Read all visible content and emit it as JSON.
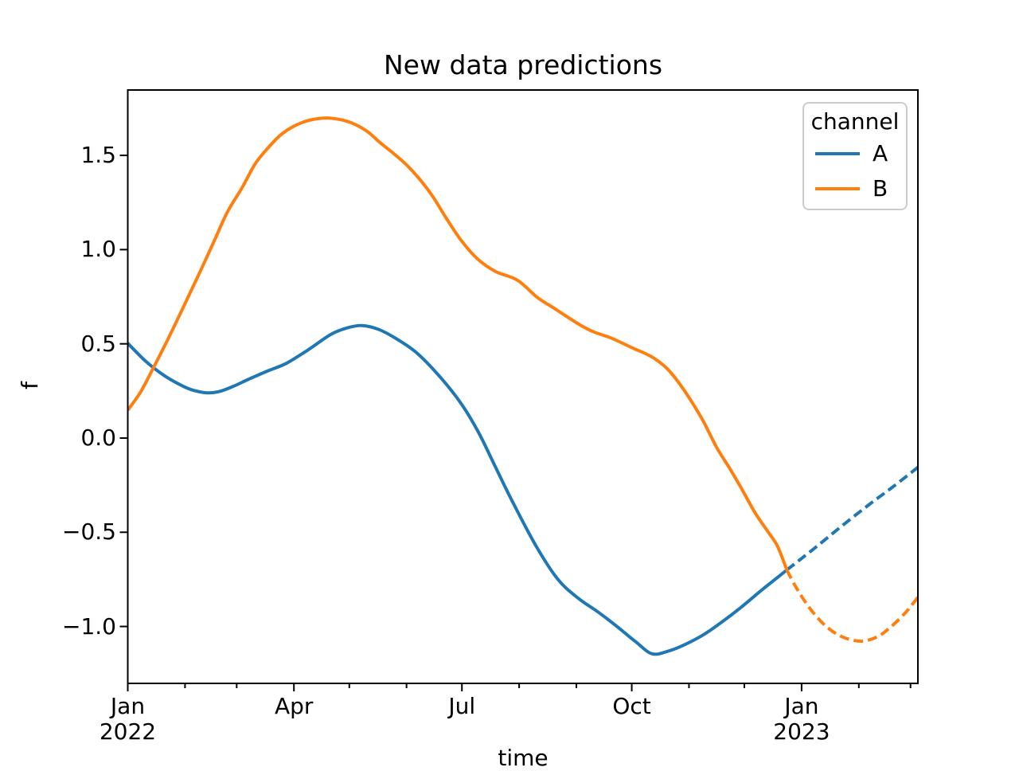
{
  "title": "New data predictions",
  "axes": {
    "xlabel": "time",
    "ylabel": "f"
  },
  "chart_data": {
    "type": "line",
    "title": "New data predictions",
    "xlabel": "time",
    "ylabel": "f",
    "x_start_date": "2022-01-01",
    "x_unit": "days since 2022-01-01",
    "xlim": [
      0,
      428
    ],
    "ylim": [
      -1.302,
      1.847
    ],
    "grid": false,
    "x_major_ticks": [
      {
        "day": 0,
        "label": "Jan",
        "sublabel": "2022"
      },
      {
        "day": 90,
        "label": "Apr",
        "sublabel": ""
      },
      {
        "day": 181,
        "label": "Jul",
        "sublabel": ""
      },
      {
        "day": 273,
        "label": "Oct",
        "sublabel": ""
      },
      {
        "day": 365,
        "label": "Jan",
        "sublabel": "2023"
      }
    ],
    "x_minor_tick_days": [
      31,
      59,
      120,
      151,
      212,
      243,
      304,
      334,
      396,
      424
    ],
    "y_ticks": [
      {
        "value": 1.5,
        "label": "1.5"
      },
      {
        "value": 1.0,
        "label": "1.0"
      },
      {
        "value": 0.5,
        "label": "0.5"
      },
      {
        "value": 0.0,
        "label": "0.0"
      },
      {
        "value": -0.5,
        "label": "−0.5"
      },
      {
        "value": -1.0,
        "label": "−1.0"
      }
    ],
    "legend": {
      "title": "channel",
      "position": "upper right"
    },
    "line_styles": {
      "observed": "solid",
      "predicted": "dashed"
    },
    "series": [
      {
        "name": "A",
        "color": "#1f77b4",
        "observed": [
          [
            0,
            0.503
          ],
          [
            10,
            0.405
          ],
          [
            20,
            0.33
          ],
          [
            30,
            0.275
          ],
          [
            36,
            0.252
          ],
          [
            43,
            0.24
          ],
          [
            50,
            0.248
          ],
          [
            58,
            0.278
          ],
          [
            65,
            0.31
          ],
          [
            76,
            0.357
          ],
          [
            86,
            0.397
          ],
          [
            98,
            0.47
          ],
          [
            110,
            0.55
          ],
          [
            119,
            0.585
          ],
          [
            127,
            0.597
          ],
          [
            136,
            0.576
          ],
          [
            146,
            0.524
          ],
          [
            157,
            0.448
          ],
          [
            170,
            0.315
          ],
          [
            181,
            0.177
          ],
          [
            190,
            0.03
          ],
          [
            199,
            -0.15
          ],
          [
            208,
            -0.33
          ],
          [
            221,
            -0.57
          ],
          [
            233,
            -0.75
          ],
          [
            244,
            -0.85
          ],
          [
            255,
            -0.925
          ],
          [
            265,
            -1.0
          ],
          [
            275,
            -1.08
          ],
          [
            284,
            -1.145
          ],
          [
            293,
            -1.13
          ],
          [
            302,
            -1.095
          ],
          [
            312,
            -1.043
          ],
          [
            322,
            -0.975
          ],
          [
            332,
            -0.9
          ],
          [
            343,
            -0.81
          ],
          [
            350,
            -0.755
          ],
          [
            357,
            -0.7
          ]
        ],
        "predicted": [
          [
            357,
            -0.7
          ],
          [
            372,
            -0.585
          ],
          [
            387,
            -0.465
          ],
          [
            402,
            -0.35
          ],
          [
            415,
            -0.255
          ],
          [
            428,
            -0.155
          ]
        ]
      },
      {
        "name": "B",
        "color": "#ff7f0e",
        "observed": [
          [
            0,
            0.148
          ],
          [
            7,
            0.245
          ],
          [
            14,
            0.375
          ],
          [
            20,
            0.49
          ],
          [
            26,
            0.61
          ],
          [
            33,
            0.755
          ],
          [
            40,
            0.9
          ],
          [
            47,
            1.05
          ],
          [
            54,
            1.2
          ],
          [
            62,
            1.33
          ],
          [
            69,
            1.455
          ],
          [
            76,
            1.54
          ],
          [
            83,
            1.61
          ],
          [
            90,
            1.655
          ],
          [
            97,
            1.683
          ],
          [
            103,
            1.695
          ],
          [
            109,
            1.698
          ],
          [
            116,
            1.688
          ],
          [
            123,
            1.665
          ],
          [
            130,
            1.625
          ],
          [
            137,
            1.565
          ],
          [
            144,
            1.51
          ],
          [
            151,
            1.45
          ],
          [
            158,
            1.375
          ],
          [
            165,
            1.285
          ],
          [
            172,
            1.175
          ],
          [
            180,
            1.057
          ],
          [
            189,
            0.955
          ],
          [
            199,
            0.885
          ],
          [
            211,
            0.838
          ],
          [
            222,
            0.745
          ],
          [
            230,
            0.695
          ],
          [
            237,
            0.65
          ],
          [
            245,
            0.6
          ],
          [
            252,
            0.565
          ],
          [
            262,
            0.53
          ],
          [
            273,
            0.48
          ],
          [
            280,
            0.45
          ],
          [
            285,
            0.424
          ],
          [
            292,
            0.37
          ],
          [
            298,
            0.3
          ],
          [
            305,
            0.2
          ],
          [
            312,
            0.085
          ],
          [
            319,
            -0.05
          ],
          [
            326,
            -0.16
          ],
          [
            332,
            -0.26
          ],
          [
            340,
            -0.4
          ],
          [
            347,
            -0.5
          ],
          [
            352,
            -0.575
          ],
          [
            357,
            -0.7
          ]
        ],
        "predicted": [
          [
            357,
            -0.7
          ],
          [
            361,
            -0.775
          ],
          [
            366,
            -0.855
          ],
          [
            372,
            -0.935
          ],
          [
            379,
            -1.005
          ],
          [
            387,
            -1.055
          ],
          [
            397,
            -1.078
          ],
          [
            406,
            -1.055
          ],
          [
            413,
            -1.005
          ],
          [
            420,
            -0.94
          ],
          [
            424,
            -0.895
          ],
          [
            428,
            -0.845
          ]
        ]
      }
    ]
  }
}
